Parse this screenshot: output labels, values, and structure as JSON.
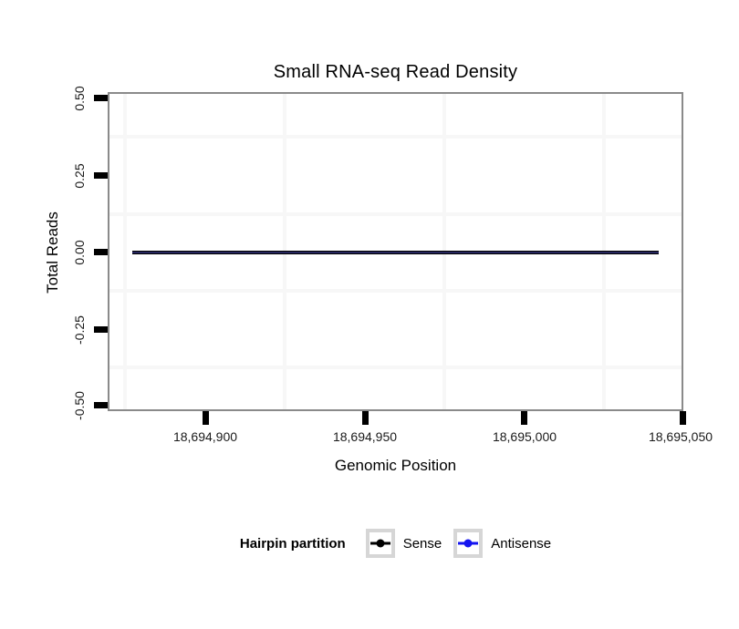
{
  "title": "Small RNA-seq Read Density",
  "axes": {
    "x": {
      "label": "Genomic Position",
      "tick_labels": [
        "18,694,900",
        "18,694,950",
        "18,695,000",
        "18,695,050"
      ]
    },
    "y": {
      "label": "Total Reads",
      "tick_labels": [
        "0.50",
        "0.25",
        "0.00",
        "-0.25",
        "-0.50"
      ]
    }
  },
  "legend": {
    "title": "Hairpin partition",
    "items": [
      {
        "label": "Sense",
        "color": "#000000"
      },
      {
        "label": "Antisense",
        "color": "#1414f0"
      }
    ]
  },
  "colors": {
    "panel_border": "#8a8a8a",
    "minor_grid": "#f7f7f7",
    "tick_marks": "#000000",
    "legend_key_border": "#d6d6d6",
    "overlapped_line": "#26265e",
    "background": "#ffffff"
  },
  "chart_data": {
    "type": "line",
    "title": "Small RNA-seq Read Density",
    "xlabel": "Genomic Position",
    "ylabel": "Total Reads",
    "x_ticks": [
      18694900,
      18694950,
      18695000,
      18695050
    ],
    "y_ticks": [
      -0.5,
      -0.25,
      0.0,
      0.25,
      0.5
    ],
    "xlim": [
      18694869,
      18695049
    ],
    "ylim": [
      -0.5,
      0.5
    ],
    "grid": "minor gridlines only (midpoints between ticks), very light gray",
    "legend_position": "bottom",
    "legend_title": "Hairpin partition",
    "series": [
      {
        "name": "Sense",
        "color": "#000000",
        "x": [
          18694877,
          18695041
        ],
        "values": [
          0,
          0
        ]
      },
      {
        "name": "Antisense",
        "color": "#1414f0",
        "x": [
          18694877,
          18695041
        ],
        "values": [
          0,
          0
        ]
      }
    ],
    "note": "Both series are flat at 0 total reads across the region, so the blue antisense line overlaps the black sense line, appearing as one dark navy line at y = 0."
  }
}
